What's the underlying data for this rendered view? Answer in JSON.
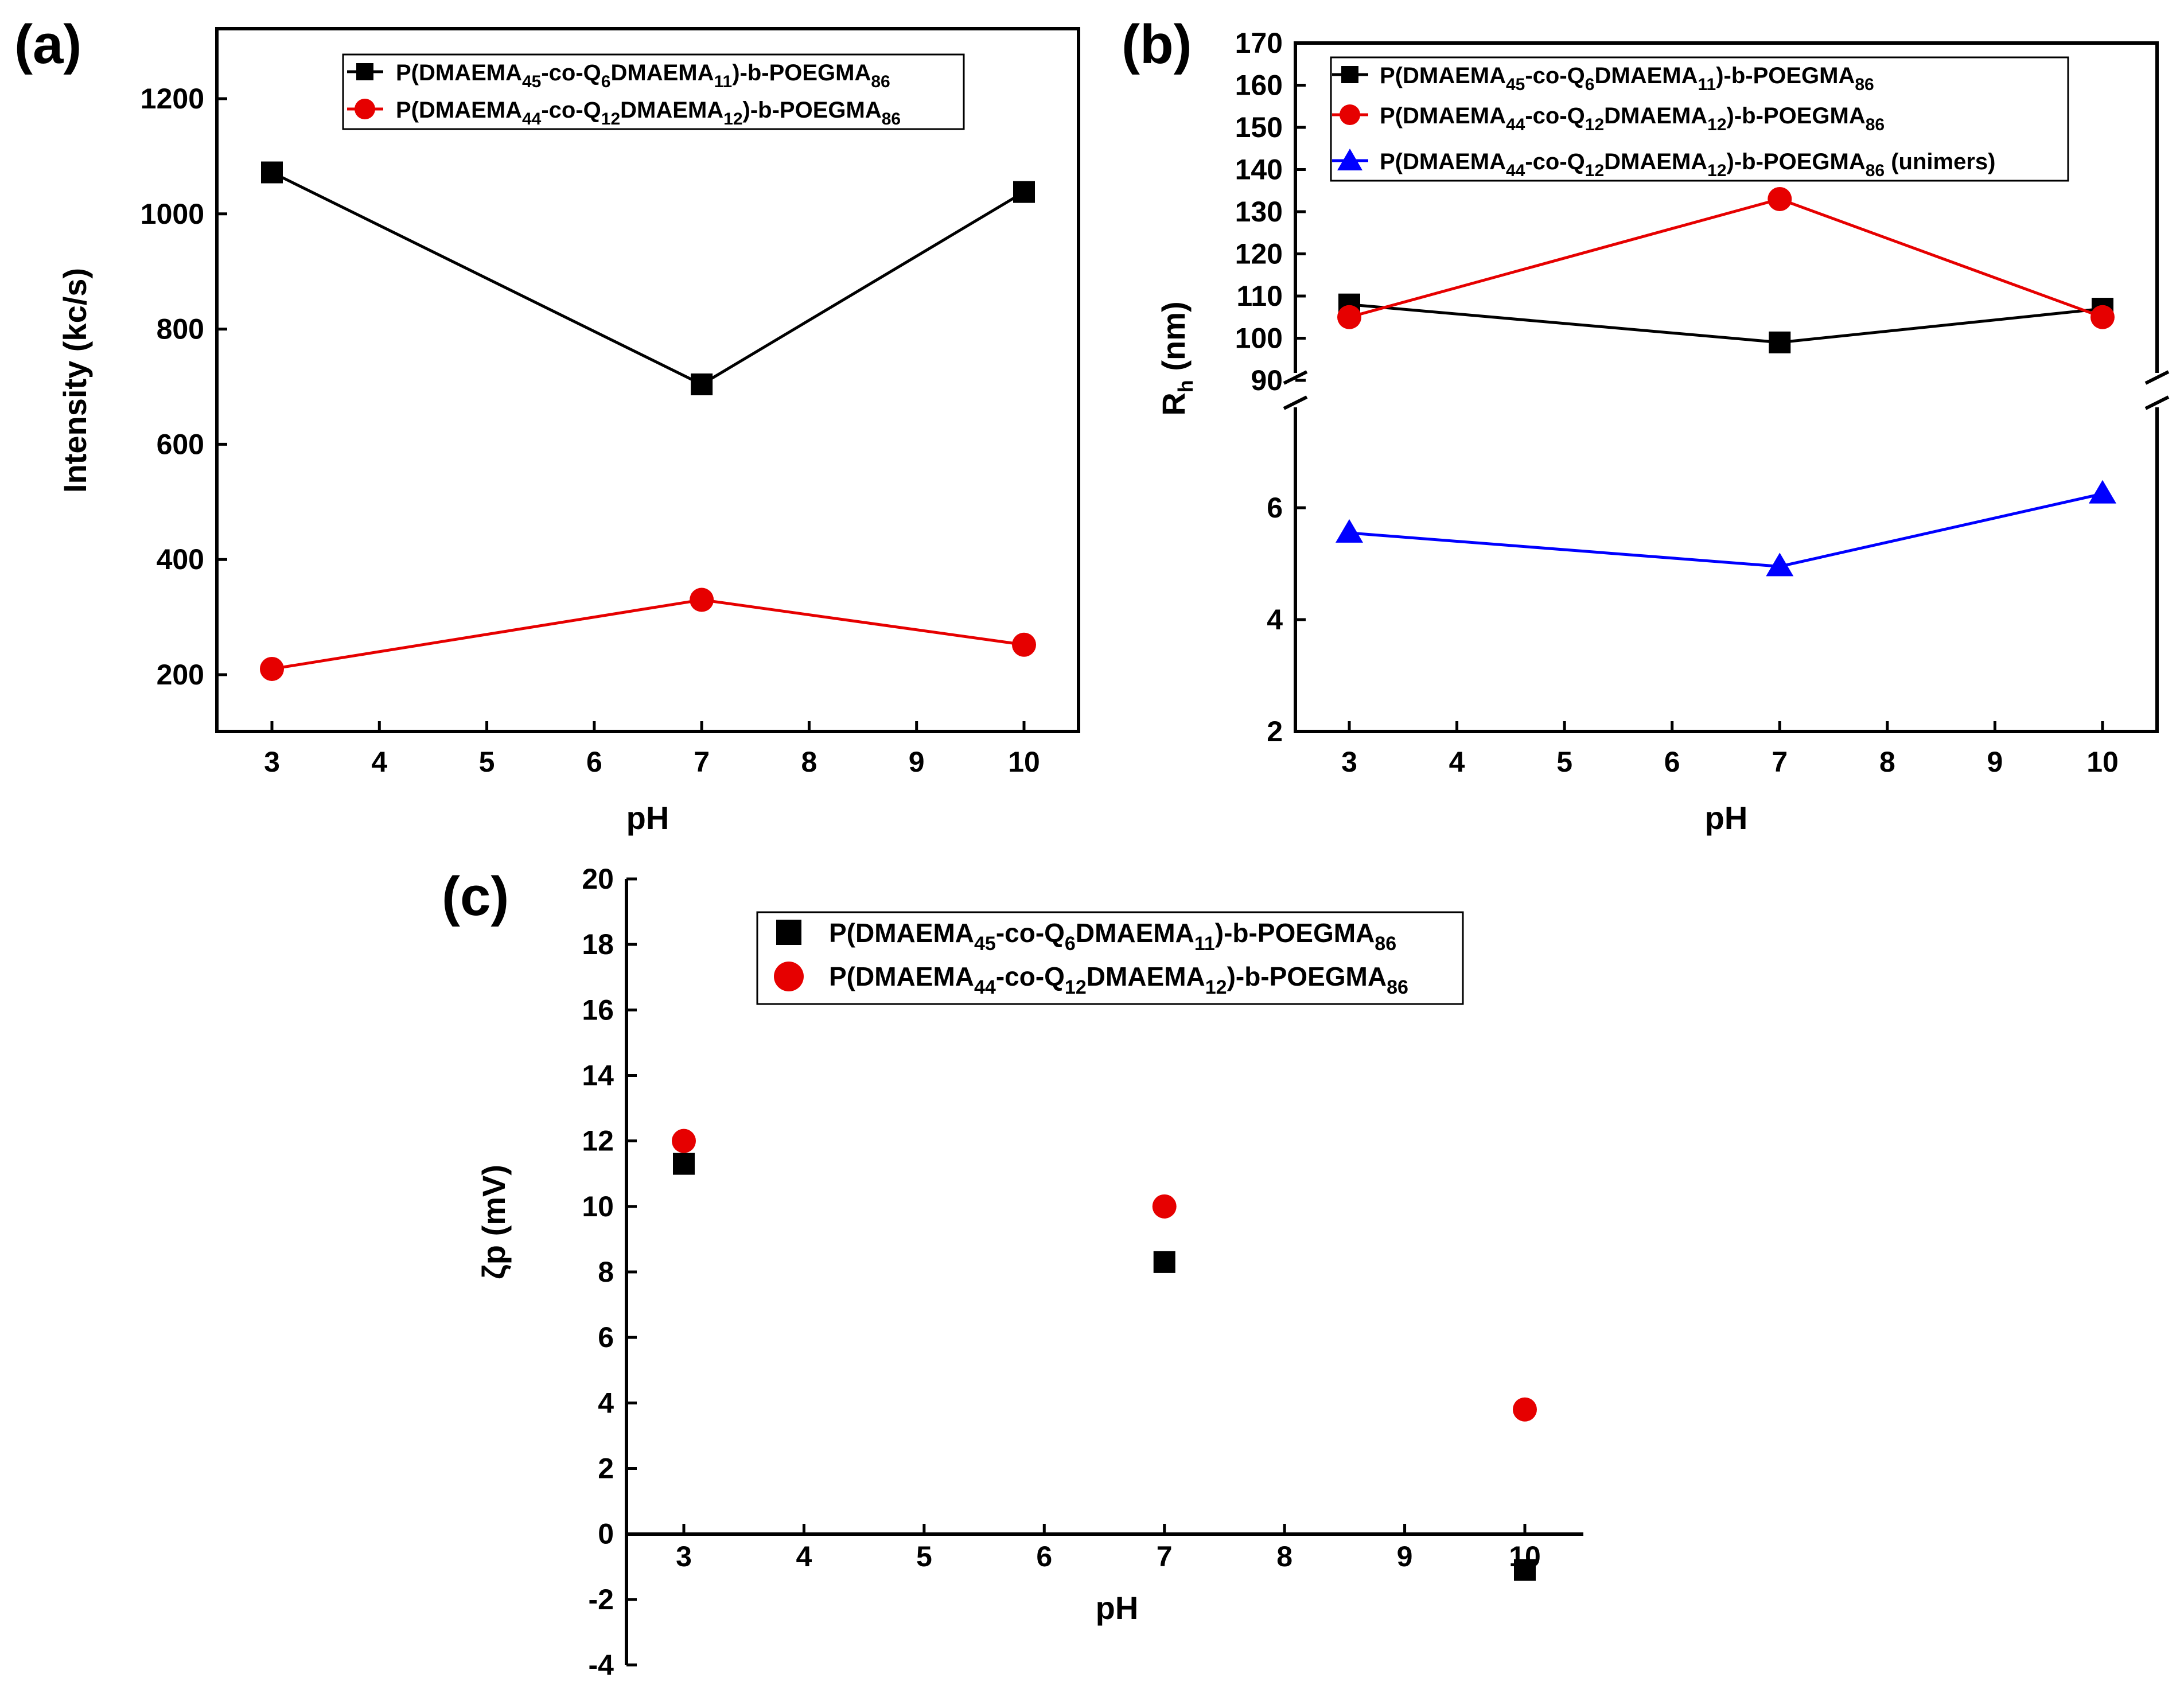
{
  "chart_data": [
    {
      "panel_label": "(a)",
      "type": "line",
      "xlabel": "pH",
      "ylabel": "Intensity (kc/s)",
      "xlim": [
        2.5,
        10.5
      ],
      "ylim": [
        100,
        1300
      ],
      "xticks": [
        "3",
        "4",
        "5",
        "6",
        "7",
        "8",
        "9",
        "10"
      ],
      "yticks": [
        "200",
        "400",
        "600",
        "800",
        "1000",
        "1200"
      ],
      "legend_position": "top-right",
      "series": [
        {
          "name": "P(DMAEMA45-co-Q6DMAEMA11)-b-POEGMA86",
          "legend": {
            "t1": "P(DMAEMA",
            "s1": "45",
            "t2": "-co-Q",
            "s2": "6",
            "t3": "DMAEMA",
            "s3": "11",
            "t4": ")-b-POEGMA",
            "s4": "86"
          },
          "color": "#000000",
          "marker": "square",
          "x": [
            3,
            7,
            10
          ],
          "y": [
            1072,
            704,
            1038
          ]
        },
        {
          "name": "P(DMAEMA44-co-Q12DMAEMA12)-b-POEGMA86",
          "legend": {
            "t1": "P(DMAEMA",
            "s1": "44",
            "t2": "-co-Q",
            "s2": "12",
            "t3": "DMAEMA",
            "s3": "12",
            "t4": ")-b-POEGMA",
            "s4": "86"
          },
          "color": "#e60000",
          "marker": "circle",
          "x": [
            3,
            7,
            10
          ],
          "y": [
            210,
            330,
            252
          ]
        }
      ]
    },
    {
      "panel_label": "(b)",
      "type": "line",
      "xlabel": "pH",
      "ylabel": "R",
      "ylabel_sub": "h",
      "ylabel_unit": " (nm)",
      "xlim": [
        2.5,
        10.5
      ],
      "broken_axis": true,
      "upper_ylim": [
        90,
        170
      ],
      "lower_ylim": [
        2,
        8
      ],
      "xticks": [
        "3",
        "4",
        "5",
        "6",
        "7",
        "8",
        "9",
        "10"
      ],
      "upper_yticks": [
        "90",
        "100",
        "110",
        "120",
        "130",
        "140",
        "150",
        "160",
        "170"
      ],
      "lower_yticks": [
        "2",
        "4",
        "6"
      ],
      "legend_position": "top",
      "series": [
        {
          "name": "P(DMAEMA45-co-Q6DMAEMA11)-b-POEGMA86",
          "legend": {
            "t1": "P(DMAEMA",
            "s1": "45",
            "t2": "-co-Q",
            "s2": "6",
            "t3": "DMAEMA",
            "s3": "11",
            "t4": ")-b-POEGMA",
            "s4": "86",
            "t5": ""
          },
          "color": "#000000",
          "marker": "square",
          "axis": "upper",
          "x": [
            3,
            7,
            10
          ],
          "y": [
            108,
            99,
            107
          ]
        },
        {
          "name": "P(DMAEMA44-co-Q12DMAEMA12)-b-POEGMA86",
          "legend": {
            "t1": "P(DMAEMA",
            "s1": "44",
            "t2": "-co-Q",
            "s2": "12",
            "t3": "DMAEMA",
            "s3": "12",
            "t4": ")-b-POEGMA",
            "s4": "86",
            "t5": ""
          },
          "color": "#e60000",
          "marker": "circle",
          "axis": "upper",
          "x": [
            3,
            7,
            10
          ],
          "y": [
            105,
            133,
            105
          ]
        },
        {
          "name": "P(DMAEMA44-co-Q12DMAEMA12)-b-POEGMA86 (unimers)",
          "legend": {
            "t1": "P(DMAEMA",
            "s1": "44",
            "t2": "-co-Q",
            "s2": "12",
            "t3": "DMAEMA",
            "s3": "12",
            "t4": ")-b-POEGMA",
            "s4": "86",
            "t5": " (unimers)"
          },
          "color": "#0000ff",
          "marker": "triangle",
          "axis": "lower",
          "x": [
            3,
            7,
            10
          ],
          "y": [
            5.55,
            4.95,
            6.25
          ]
        }
      ]
    },
    {
      "panel_label": "(c)",
      "type": "scatter",
      "xlabel": "pH",
      "ylabel": "ζp (mV)",
      "xlim": [
        2.5,
        10.5
      ],
      "ylim": [
        -4,
        20
      ],
      "xticks": [
        "3",
        "4",
        "5",
        "6",
        "7",
        "8",
        "9",
        "10"
      ],
      "yticks": [
        "-4",
        "-2",
        "0",
        "2",
        "4",
        "6",
        "8",
        "10",
        "12",
        "14",
        "16",
        "18",
        "20"
      ],
      "legend_position": "top",
      "series": [
        {
          "name": "P(DMAEMA45-co-Q6DMAEMA11)-b-POEGMA86",
          "legend": {
            "t1": "P(DMAEMA",
            "s1": "45",
            "t2": "-co-Q",
            "s2": "6",
            "t3": "DMAEMA",
            "s3": "11",
            "t4": ")-b-POEGMA",
            "s4": "86"
          },
          "color": "#000000",
          "marker": "square",
          "x": [
            3,
            7,
            10
          ],
          "y": [
            11.3,
            8.3,
            -1.1
          ]
        },
        {
          "name": "P(DMAEMA44-co-Q12DMAEMA12)-b-POEGMA86",
          "legend": {
            "t1": "P(DMAEMA",
            "s1": "44",
            "t2": "-co-Q",
            "s2": "12",
            "t3": "DMAEMA",
            "s3": "12",
            "t4": ")-b-POEGMA",
            "s4": "86"
          },
          "color": "#e60000",
          "marker": "circle",
          "x": [
            3,
            7,
            10
          ],
          "y": [
            12,
            10,
            3.8
          ]
        }
      ]
    }
  ]
}
